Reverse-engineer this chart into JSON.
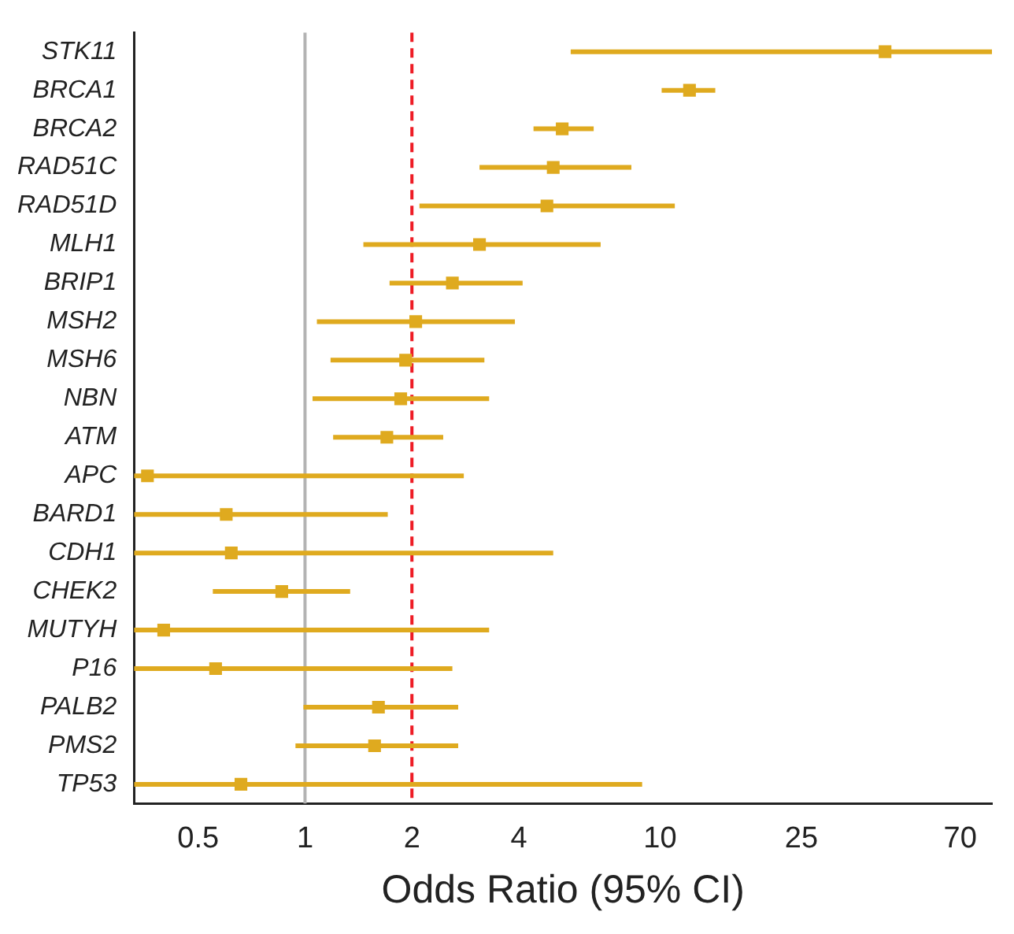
{
  "chart_data": {
    "type": "scatter",
    "orientation": "horizontal",
    "xlabel": "Odds Ratio (95% CI)",
    "categories": [
      "STK11",
      "BRCA1",
      "BRCA2",
      "RAD51C",
      "RAD51D",
      "MLH1",
      "BRIP1",
      "MSH2",
      "MSH6",
      "NBN",
      "ATM",
      "APC",
      "BARD1",
      "CDH1",
      "CHEK2",
      "MUTYH",
      "P16",
      "PALB2",
      "PMS2",
      "TP53"
    ],
    "values": [
      43,
      12.1,
      5.3,
      5.0,
      4.8,
      3.1,
      2.6,
      2.05,
      1.92,
      1.86,
      1.7,
      0.36,
      0.6,
      0.62,
      0.86,
      0.4,
      0.56,
      1.61,
      1.57,
      0.66
    ],
    "errors": [
      [
        5.6,
        86
      ],
      [
        10.1,
        14.3
      ],
      [
        4.4,
        6.5
      ],
      [
        3.1,
        8.3
      ],
      [
        2.1,
        11.0
      ],
      [
        1.46,
        6.8
      ],
      [
        1.73,
        4.1
      ],
      [
        1.08,
        3.9
      ],
      [
        1.18,
        3.2
      ],
      [
        1.05,
        3.3
      ],
      [
        1.2,
        2.45
      ],
      [
        0.33,
        2.8
      ],
      [
        0.33,
        1.71
      ],
      [
        0.33,
        5.0
      ],
      [
        0.55,
        1.34
      ],
      [
        0.33,
        3.3
      ],
      [
        0.33,
        2.6
      ],
      [
        0.99,
        2.7
      ],
      [
        0.94,
        2.7
      ],
      [
        0.33,
        8.9
      ]
    ],
    "color": "#dfaa1f",
    "marker": "square",
    "log": "x",
    "xlim": [
      0.33,
      86
    ],
    "xticks": [
      0.5,
      1,
      2,
      4,
      10,
      25,
      70
    ],
    "ref_lines": [
      {
        "axis": "x",
        "value": 1,
        "color": "#b3b3b3",
        "line_style": "solid"
      },
      {
        "axis": "x",
        "value": 2,
        "color": "#ee1c25",
        "line_style": "dashed"
      }
    ],
    "grid": false,
    "legend": false
  }
}
